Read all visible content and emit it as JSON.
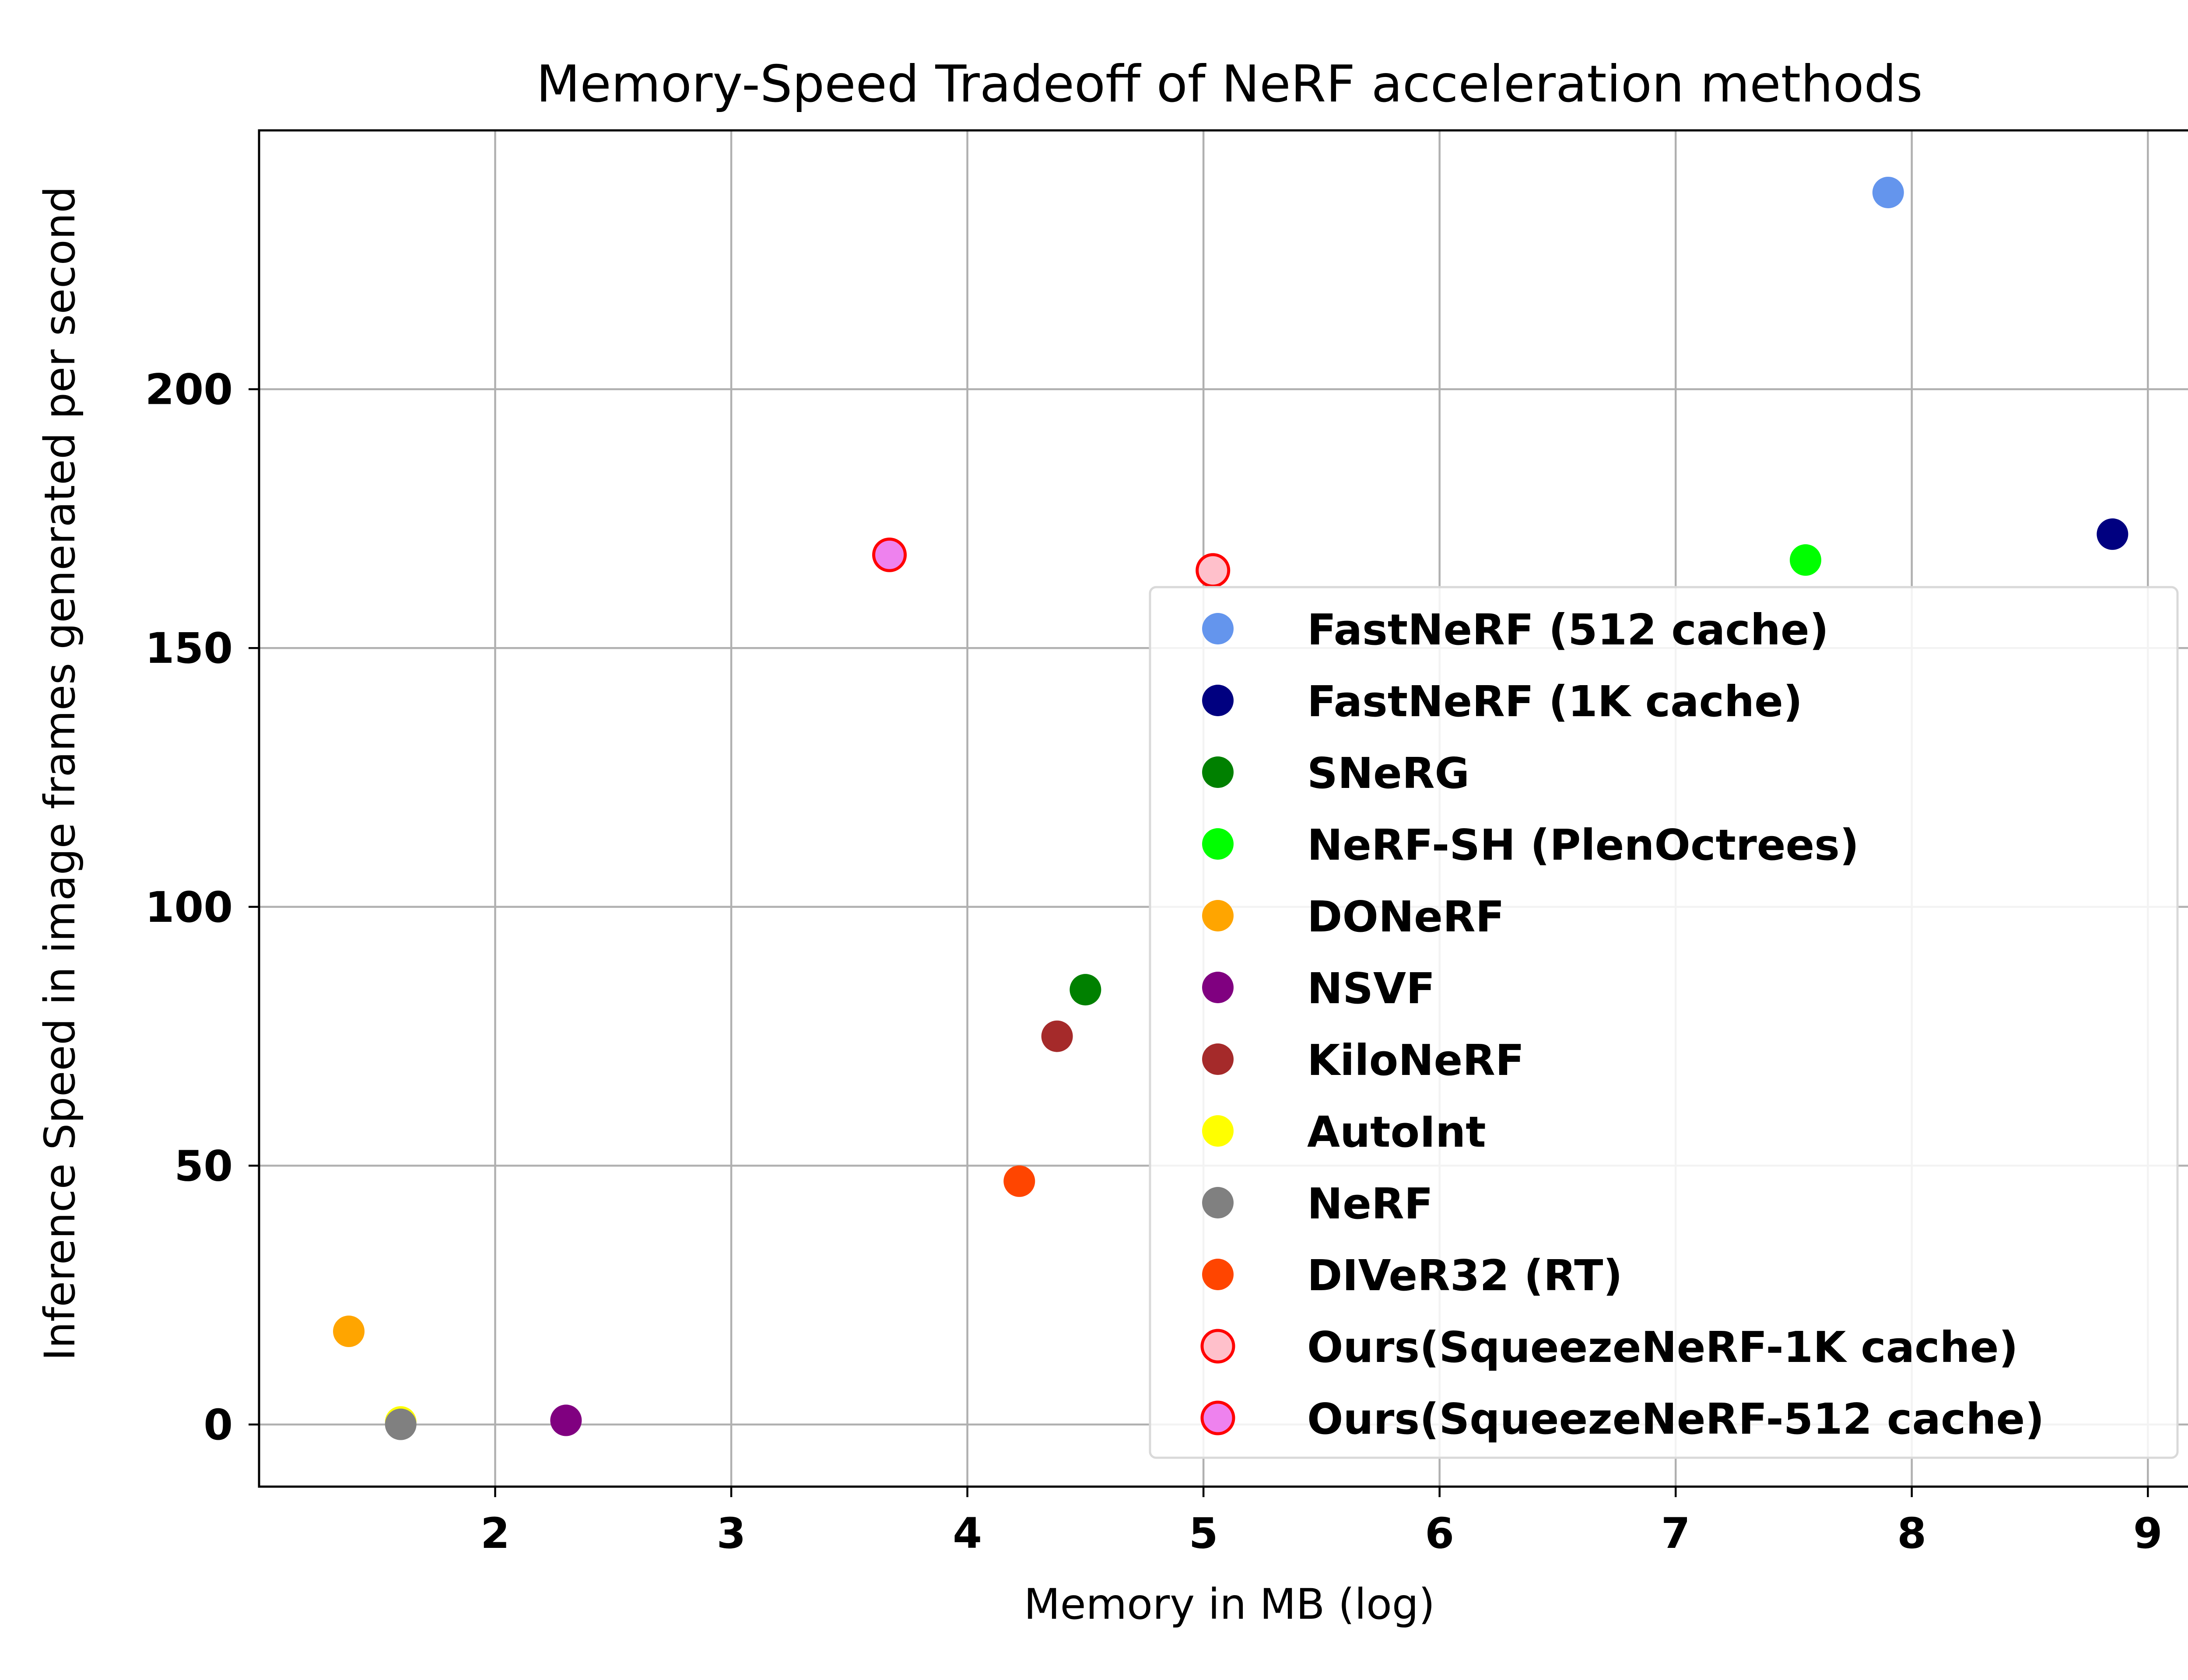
{
  "chart_data": {
    "type": "scatter",
    "title": "Memory-Speed Tradeoff of NeRF acceleration methods",
    "xlabel": "Memory in MB (log)",
    "ylabel": "Inference Speed in image frames generated per second",
    "xlim": [
      1.0,
      9.22
    ],
    "ylim": [
      -12,
      250
    ],
    "xticks": [
      2,
      3,
      4,
      5,
      6,
      7,
      8,
      9
    ],
    "xtick_labels": [
      "2",
      "3",
      "4",
      "5",
      "6",
      "7",
      "8",
      "9"
    ],
    "yticks": [
      0,
      50,
      100,
      150,
      200
    ],
    "ytick_labels": [
      "0",
      "50",
      "100",
      "150",
      "200"
    ],
    "grid": true,
    "legend_position": "center-right",
    "series": [
      {
        "name": "FastNeRF (512 cache)",
        "color": "#6495ED",
        "edge_color": "",
        "x": 7.9,
        "y": 238
      },
      {
        "name": "FastNeRF (1K cache)",
        "color": "#000080",
        "edge_color": "",
        "x": 8.85,
        "y": 172
      },
      {
        "name": "SNeRG",
        "color": "#008000",
        "edge_color": "",
        "x": 4.5,
        "y": 84
      },
      {
        "name": "NeRF-SH (PlenOctrees)",
        "color": "#00FF00",
        "edge_color": "",
        "x": 7.55,
        "y": 167
      },
      {
        "name": "DONeRF",
        "color": "#FFA500",
        "edge_color": "",
        "x": 1.38,
        "y": 18
      },
      {
        "name": "NSVF",
        "color": "#800080",
        "edge_color": "",
        "x": 2.3,
        "y": 0.8
      },
      {
        "name": "KiloNeRF",
        "color": "#A52A2A",
        "edge_color": "",
        "x": 4.38,
        "y": 75
      },
      {
        "name": "AutoInt",
        "color": "#FFFF00",
        "edge_color": "",
        "x": 1.6,
        "y": 0.5
      },
      {
        "name": "NeRF",
        "color": "#808080",
        "edge_color": "",
        "x": 1.6,
        "y": 0.03
      },
      {
        "name": "DIVeR32 (RT)",
        "color": "#FF4500",
        "edge_color": "",
        "x": 4.22,
        "y": 47
      },
      {
        "name": "Ours(SqueezeNeRF-1K cache)",
        "color": "#FFC0CB",
        "edge_color": "#FF0000",
        "x": 5.04,
        "y": 165
      },
      {
        "name": "Ours(SqueezeNeRF-512 cache)",
        "color": "#EE82EE",
        "edge_color": "#FF0000",
        "x": 3.67,
        "y": 168
      }
    ]
  }
}
